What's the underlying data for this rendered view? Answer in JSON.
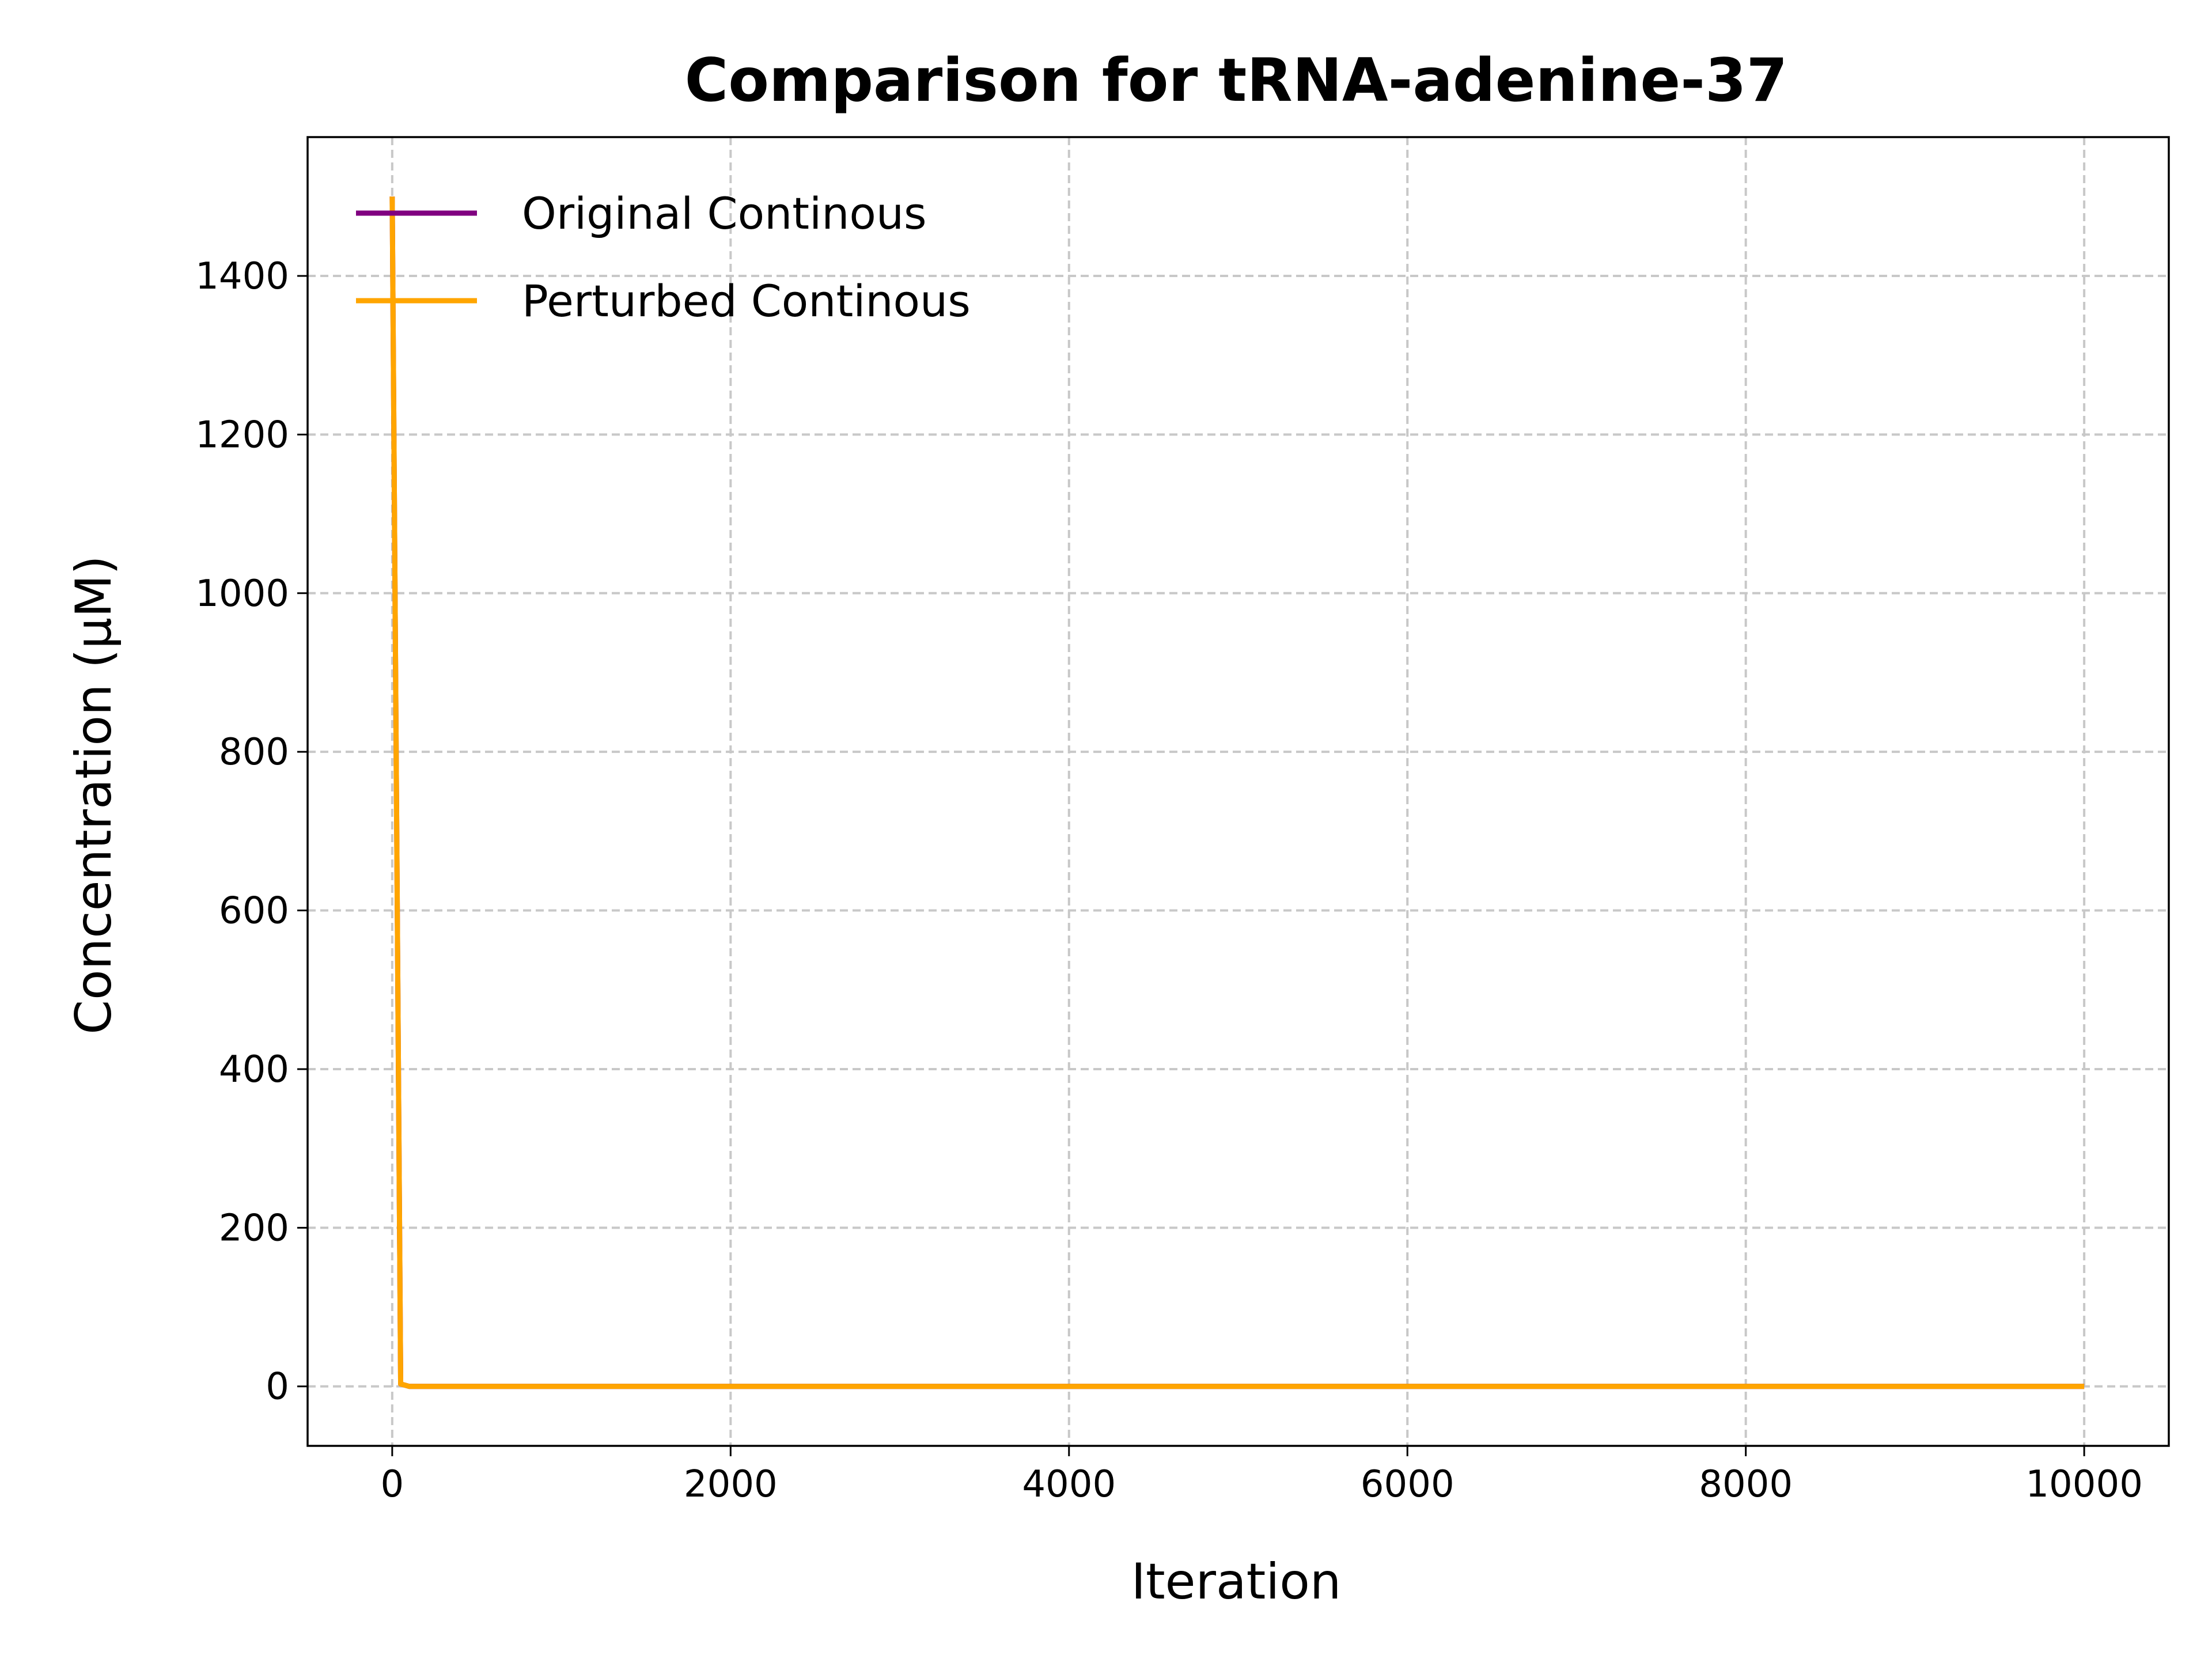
{
  "chart_data": {
    "type": "line",
    "title": "Comparison for tRNA-adenine-37",
    "xlabel": "Iteration",
    "ylabel": "Concentration (μM)",
    "xlim": [
      -500,
      10500
    ],
    "ylim": [
      -75,
      1575
    ],
    "xticks": [
      0,
      2000,
      4000,
      6000,
      8000,
      10000
    ],
    "yticks": [
      0,
      200,
      400,
      600,
      800,
      1000,
      1200,
      1400
    ],
    "grid": true,
    "legend_position": "upper-left",
    "series": [
      {
        "name": "Original Continous",
        "color": "#800080",
        "x": [
          0,
          50,
          100,
          1000,
          5000,
          10000
        ],
        "y": [
          1500,
          3,
          0,
          0,
          0,
          0
        ]
      },
      {
        "name": "Perturbed Continous",
        "color": "#FFA500",
        "x": [
          0,
          50,
          100,
          1000,
          5000,
          10000
        ],
        "y": [
          1500,
          3,
          0,
          0,
          0,
          0
        ]
      }
    ]
  }
}
